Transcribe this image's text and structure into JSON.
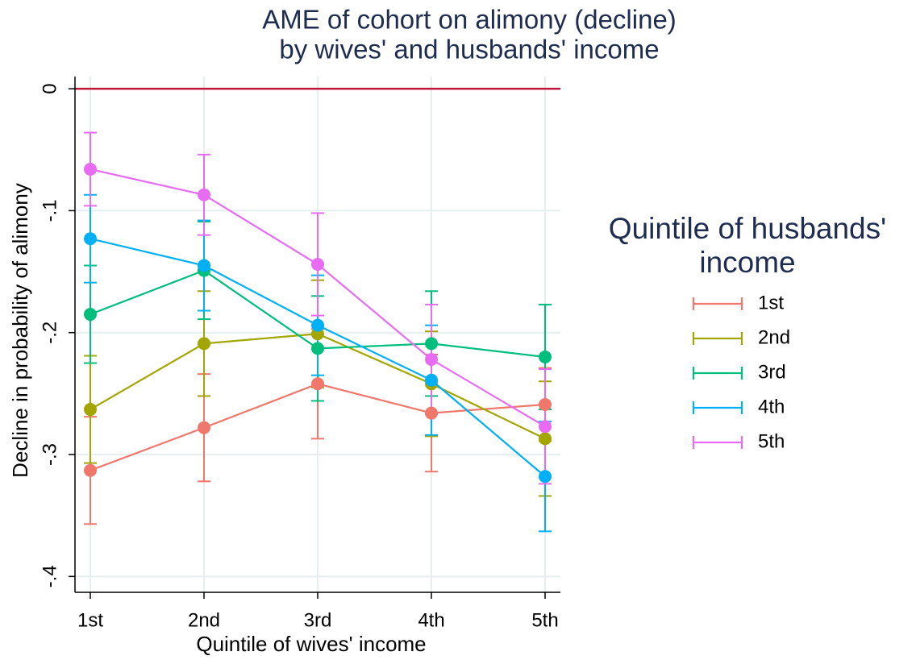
{
  "chart_data": {
    "type": "line",
    "title": [
      "AME of cohort on alimony (decline)",
      "by wives' and husbands' income"
    ],
    "x_label": "Quintile of wives' income",
    "y_label": "Decline in probability of alimony",
    "categories": [
      "1st",
      "2nd",
      "3rd",
      "4th",
      "5th"
    ],
    "ylim": [
      -0.413,
      0.01
    ],
    "yticks": [
      {
        "value": 0,
        "label": "0"
      },
      {
        "value": -0.1,
        "label": "-.1"
      },
      {
        "value": -0.2,
        "label": "-.2"
      },
      {
        "value": -0.3,
        "label": "-.3"
      },
      {
        "value": -0.4,
        "label": "-.4"
      }
    ],
    "grid": true,
    "reference_line": {
      "value": 0,
      "color": "#c0143c"
    },
    "legend": {
      "title": [
        "Quintile of husbands'",
        "income"
      ],
      "position": "right"
    },
    "series": [
      {
        "name": "1st",
        "color": "#f0776b",
        "values": [
          -0.313,
          -0.278,
          -0.242,
          -0.266,
          -0.259
        ],
        "errors": [
          0.044,
          0.044,
          0.045,
          0.048,
          0.03
        ]
      },
      {
        "name": "2nd",
        "color": "#a3a500",
        "values": [
          -0.263,
          -0.209,
          -0.201,
          -0.242,
          -0.287
        ],
        "errors": [
          0.044,
          0.043,
          0.044,
          0.043,
          0.047
        ]
      },
      {
        "name": "3rd",
        "color": "#00bf7d",
        "values": [
          -0.185,
          -0.149,
          -0.213,
          -0.209,
          -0.22
        ],
        "errors": [
          0.04,
          0.04,
          0.043,
          0.043,
          0.043
        ]
      },
      {
        "name": "4th",
        "color": "#00b0f6",
        "values": [
          -0.123,
          -0.145,
          -0.194,
          -0.239,
          -0.318
        ],
        "errors": [
          0.036,
          0.037,
          0.041,
          0.045,
          0.045
        ]
      },
      {
        "name": "5th",
        "color": "#e76bf3",
        "values": [
          -0.066,
          -0.087,
          -0.144,
          -0.222,
          -0.277
        ],
        "errors": [
          0.03,
          0.033,
          0.042,
          0.045,
          0.047
        ]
      }
    ]
  }
}
